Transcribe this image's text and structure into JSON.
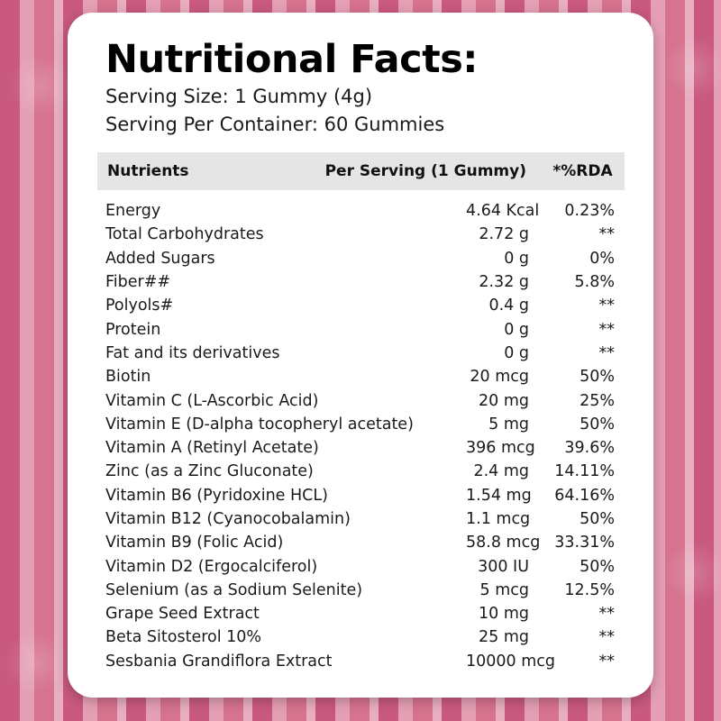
{
  "colors": {
    "background": "#c65a80",
    "card": "#ffffff",
    "header_bg": "#e5e5e5"
  },
  "title": "Nutritional Facts:",
  "serving_size": "Serving Size: 1 Gummy (4g)",
  "serving_per_container": "Serving Per Container: 60 Gummies",
  "table": {
    "headers": {
      "nutrient": "Nutrients",
      "per_serving": "Per Serving (1 Gummy)",
      "rda": "*%RDA"
    },
    "rows": [
      {
        "name": "Energy",
        "per": "4.64 Kcal",
        "rda": "0.23%"
      },
      {
        "name": "Total Carbohydrates",
        "per": "2.72 g",
        "rda": "**"
      },
      {
        "name": "Added Sugars",
        "per": "0 g",
        "rda": "0%"
      },
      {
        "name": "Fiber##",
        "per": "2.32 g",
        "rda": "5.8%"
      },
      {
        "name": "Polyols#",
        "per": "0.4 g",
        "rda": "**"
      },
      {
        "name": "Protein",
        "per": "0 g",
        "rda": "**"
      },
      {
        "name": "Fat and its derivatives",
        "per": "0 g",
        "rda": "**"
      },
      {
        "name": "Biotin",
        "per": "20 mcg",
        "rda": "50%"
      },
      {
        "name": "Vitamin C (L-Ascorbic Acid)",
        "per": "20 mg",
        "rda": "25%"
      },
      {
        "name": "Vitamin E (D-alpha tocopheryl acetate)",
        "per": "5 mg",
        "rda": "50%"
      },
      {
        "name": "Vitamin A (Retinyl Acetate)",
        "per": "396 mcg",
        "rda": "39.6%"
      },
      {
        "name": "Zinc (as a Zinc Gluconate)",
        "per": "2.4 mg",
        "rda": "14.11%"
      },
      {
        "name": "Vitamin B6 (Pyridoxine HCL)",
        "per": "1.54 mg",
        "rda": "64.16%"
      },
      {
        "name": "Vitamin B12 (Cyanocobalamin)",
        "per": "1.1 mcg",
        "rda": "50%"
      },
      {
        "name": "Vitamin B9 (Folic Acid)",
        "per": "58.8 mcg",
        "rda": "33.31%"
      },
      {
        "name": "Vitamin D2 (Ergocalciferol)",
        "per": "300 IU",
        "rda": "50%"
      },
      {
        "name": "Selenium (as a Sodium Selenite)",
        "per": "5 mcg",
        "rda": "12.5%"
      },
      {
        "name": "Grape Seed Extract",
        "per": "10 mg",
        "rda": "**"
      },
      {
        "name": "Beta Sitosterol 10%",
        "per": "25 mg",
        "rda": "**"
      },
      {
        "name": "Sesbania Grandiflora Extract",
        "per": "10000 mcg",
        "rda": "**"
      }
    ]
  }
}
